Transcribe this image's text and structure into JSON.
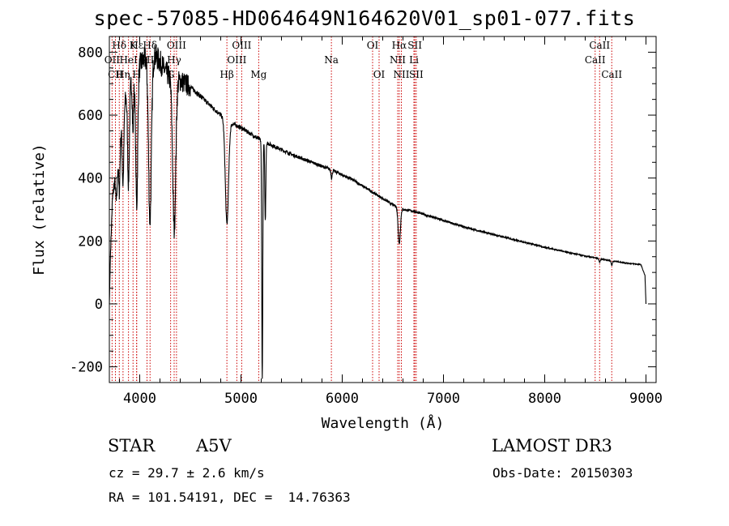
{
  "chart_data": {
    "type": "line",
    "title": "spec-57085-HD064649N164620V01_sp01-077.fits",
    "xlabel": "Wavelength (Å)",
    "ylabel": "Flux (relative)",
    "xlim": [
      3700,
      9100
    ],
    "ylim": [
      -250,
      850
    ],
    "xticks": [
      4000,
      5000,
      6000,
      7000,
      8000,
      9000
    ],
    "yticks": [
      -200,
      0,
      200,
      400,
      600,
      800
    ],
    "grid": false,
    "spectrum_anchors": {
      "x": [
        3700,
        3710,
        3730,
        3760,
        3800,
        3850,
        3900,
        3950,
        4000,
        4050,
        4150,
        4200,
        4250,
        4300,
        4400,
        4500,
        4600,
        4700,
        4800,
        4900,
        5000,
        5100,
        5200,
        5300,
        5500,
        5700,
        5900,
        6000,
        6100,
        6200,
        6300,
        6400,
        6500,
        6600,
        6700,
        6800,
        7000,
        7200,
        7400,
        7600,
        7800,
        8000,
        8200,
        8400,
        8600,
        8800,
        8950,
        8990,
        9000
      ],
      "y": [
        0,
        150,
        330,
        420,
        520,
        640,
        700,
        720,
        760,
        780,
        790,
        770,
        740,
        720,
        710,
        690,
        660,
        630,
        600,
        575,
        560,
        540,
        520,
        505,
        475,
        450,
        425,
        410,
        395,
        375,
        355,
        335,
        315,
        300,
        295,
        285,
        265,
        245,
        228,
        212,
        196,
        180,
        166,
        152,
        140,
        130,
        125,
        90,
        0
      ]
    },
    "absorption_features": [
      {
        "x": 3770,
        "depth": 120,
        "width": 8
      },
      {
        "x": 3798,
        "depth": 160,
        "width": 7
      },
      {
        "x": 3835,
        "depth": 220,
        "width": 8
      },
      {
        "x": 3889,
        "depth": 300,
        "width": 9
      },
      {
        "x": 3933,
        "depth": 170,
        "width": 6
      },
      {
        "x": 3970,
        "depth": 420,
        "width": 10
      },
      {
        "x": 4101,
        "depth": 520,
        "width": 14
      },
      {
        "x": 4340,
        "depth": 480,
        "width": 15
      },
      {
        "x": 4861,
        "depth": 330,
        "width": 16
      },
      {
        "x": 5210,
        "depth": 760,
        "width": 5
      },
      {
        "x": 5240,
        "depth": 250,
        "width": 5
      },
      {
        "x": 5895,
        "depth": 25,
        "width": 6
      },
      {
        "x": 6563,
        "depth": 115,
        "width": 11
      },
      {
        "x": 8542,
        "depth": 12,
        "width": 6
      },
      {
        "x": 8662,
        "depth": 14,
        "width": 6
      }
    ],
    "spectral_lines": [
      {
        "label": "Hδ",
        "x": 3798,
        "row": 0
      },
      {
        "label": "OII",
        "x": 3727,
        "row": 1
      },
      {
        "label": "CII",
        "x": 3760,
        "row": 2
      },
      {
        "label": "Hη",
        "x": 3835,
        "row": 2
      },
      {
        "label": "K",
        "x": 3934,
        "row": 0
      },
      {
        "label": "HeI",
        "x": 3889,
        "row": 1
      },
      {
        "label": "H",
        "x": 3969,
        "row": 2
      },
      {
        "label": "Hε",
        "x": 3970,
        "row": 0
      },
      {
        "label": "SII",
        "x": 4072,
        "row": 1
      },
      {
        "label": "Hδ",
        "x": 4102,
        "row": 0
      },
      {
        "label": "OIII",
        "x": 4363,
        "row": 0
      },
      {
        "label": "Hγ",
        "x": 4340,
        "row": 1
      },
      {
        "label": "G",
        "x": 4305,
        "row": 2
      },
      {
        "label": "OIII",
        "x": 5007,
        "row": 0
      },
      {
        "label": "OIII",
        "x": 4959,
        "row": 1
      },
      {
        "label": "Hβ",
        "x": 4861,
        "row": 2
      },
      {
        "label": "Mg",
        "x": 5175,
        "row": 2
      },
      {
        "label": "Na",
        "x": 5893,
        "row": 1
      },
      {
        "label": "OI",
        "x": 6300,
        "row": 0
      },
      {
        "label": "OI",
        "x": 6364,
        "row": 2
      },
      {
        "label": "Hα",
        "x": 6563,
        "row": 0
      },
      {
        "label": "NII",
        "x": 6548,
        "row": 1
      },
      {
        "label": "NII",
        "x": 6584,
        "row": 2
      },
      {
        "label": "SII",
        "x": 6717,
        "row": 0
      },
      {
        "label": "Li",
        "x": 6708,
        "row": 1
      },
      {
        "label": "SII",
        "x": 6731,
        "row": 2
      },
      {
        "label": "CaII",
        "x": 8542,
        "row": 0
      },
      {
        "label": "CaII",
        "x": 8498,
        "row": 1
      },
      {
        "label": "CaII",
        "x": 8662,
        "row": 2
      }
    ]
  },
  "info": {
    "class": "STAR",
    "subclass": "A5V",
    "survey": "LAMOST DR3",
    "redshift": "cz = 29.7 ± 2.6 km/s",
    "obs_date": "Obs-Date: 20150303",
    "coords": "RA = 101.54191, DEC =  14.76363"
  },
  "colors": {
    "spectrum": "#000000",
    "marker_lines": "#cc0000",
    "axes": "#000000"
  }
}
